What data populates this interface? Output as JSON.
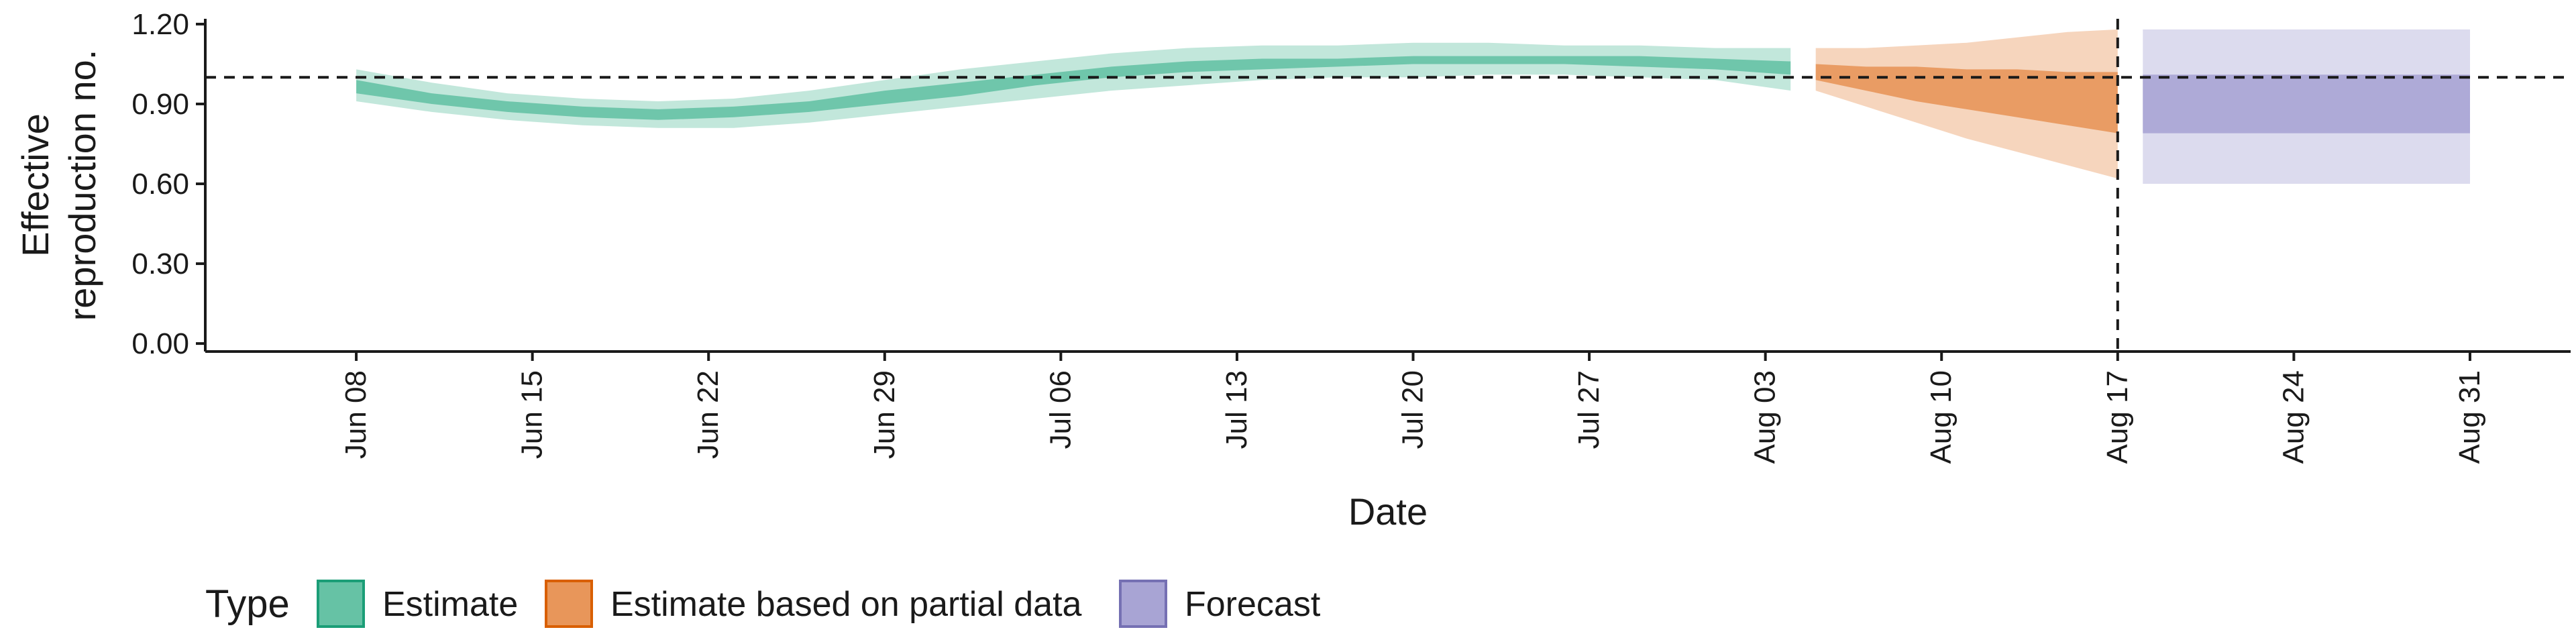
{
  "chart_data": {
    "type": "area",
    "xlabel": "Date",
    "ylabel_lines": [
      "Effective",
      "reproduction no."
    ],
    "ylim": [
      -0.03,
      1.22
    ],
    "y_ticks": [
      0.0,
      0.3,
      0.6,
      0.9,
      1.2
    ],
    "y_tick_labels": [
      "0.00",
      "0.30",
      "0.60",
      "0.90",
      "1.20"
    ],
    "x_range": [
      "2020-06-02",
      "2020-09-04"
    ],
    "x_ticks": [
      "2020-06-08",
      "2020-06-15",
      "2020-06-22",
      "2020-06-29",
      "2020-07-06",
      "2020-07-13",
      "2020-07-20",
      "2020-07-27",
      "2020-08-03",
      "2020-08-10",
      "2020-08-17",
      "2020-08-24",
      "2020-08-31"
    ],
    "x_tick_labels": [
      "Jun 08",
      "Jun 15",
      "Jun 22",
      "Jun 29",
      "Jul 06",
      "Jul 13",
      "Jul 20",
      "Jul 27",
      "Aug 03",
      "Aug 10",
      "Aug 17",
      "Aug 24",
      "Aug 31"
    ],
    "reference_hline": 1.0,
    "reference_vline": "2020-08-17",
    "legend": {
      "title": "Type",
      "position": "bottom",
      "entries": [
        {
          "label": "Estimate",
          "fill": "#66c2a5",
          "stroke": "#1b9e77"
        },
        {
          "label": "Estimate based on partial data",
          "fill": "#e8965a",
          "stroke": "#d95f02"
        },
        {
          "label": "Forecast",
          "fill": "#a8a4d4",
          "stroke": "#7570b3"
        }
      ]
    },
    "series": [
      {
        "name": "Estimate",
        "color": "#1b9e77",
        "dates": [
          "2020-06-08",
          "2020-06-11",
          "2020-06-14",
          "2020-06-17",
          "2020-06-20",
          "2020-06-23",
          "2020-06-26",
          "2020-06-29",
          "2020-07-02",
          "2020-07-05",
          "2020-07-08",
          "2020-07-11",
          "2020-07-14",
          "2020-07-17",
          "2020-07-20",
          "2020-07-23",
          "2020-07-26",
          "2020-07-29",
          "2020-08-01",
          "2020-08-04"
        ],
        "outer_lower": [
          0.91,
          0.87,
          0.84,
          0.82,
          0.81,
          0.81,
          0.83,
          0.86,
          0.89,
          0.92,
          0.95,
          0.97,
          0.99,
          1.0,
          1.0,
          1.01,
          1.01,
          1.0,
          0.99,
          0.95
        ],
        "outer_upper": [
          1.03,
          0.98,
          0.94,
          0.92,
          0.91,
          0.92,
          0.95,
          0.99,
          1.03,
          1.06,
          1.09,
          1.11,
          1.12,
          1.12,
          1.13,
          1.13,
          1.12,
          1.12,
          1.11,
          1.11
        ],
        "inner_lower": [
          0.94,
          0.9,
          0.87,
          0.85,
          0.84,
          0.85,
          0.87,
          0.9,
          0.93,
          0.97,
          1.0,
          1.02,
          1.03,
          1.04,
          1.05,
          1.05,
          1.05,
          1.04,
          1.03,
          1.01
        ],
        "inner_upper": [
          0.99,
          0.94,
          0.91,
          0.89,
          0.88,
          0.89,
          0.91,
          0.95,
          0.98,
          1.01,
          1.04,
          1.06,
          1.07,
          1.07,
          1.08,
          1.08,
          1.08,
          1.08,
          1.07,
          1.06
        ]
      },
      {
        "name": "Estimate based on partial data",
        "color": "#d95f02",
        "dates": [
          "2020-08-05",
          "2020-08-07",
          "2020-08-09",
          "2020-08-11",
          "2020-08-13",
          "2020-08-15",
          "2020-08-17"
        ],
        "outer_lower": [
          0.95,
          0.89,
          0.83,
          0.77,
          0.72,
          0.67,
          0.62
        ],
        "outer_upper": [
          1.11,
          1.11,
          1.12,
          1.13,
          1.15,
          1.17,
          1.18
        ],
        "inner_lower": [
          0.99,
          0.95,
          0.91,
          0.88,
          0.85,
          0.82,
          0.79
        ],
        "inner_upper": [
          1.05,
          1.04,
          1.04,
          1.03,
          1.03,
          1.02,
          1.02
        ]
      },
      {
        "name": "Forecast",
        "color": "#7570b3",
        "dates": [
          "2020-08-18",
          "2020-08-31"
        ],
        "outer_lower": [
          0.6,
          0.6
        ],
        "outer_upper": [
          1.18,
          1.18
        ],
        "inner_lower": [
          0.79,
          0.79
        ],
        "inner_upper": [
          1.01,
          1.01
        ]
      }
    ]
  }
}
